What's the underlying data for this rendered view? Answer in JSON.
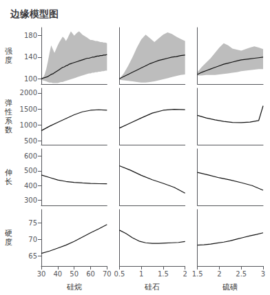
{
  "title": "边缘模型图",
  "chart_data": [
    {
      "type": "line",
      "tick_labels": "y",
      "grid": false,
      "color": "#111111",
      "ylabel": "强\n度",
      "xlim": [
        30,
        70
      ],
      "xticks": [
        30,
        40,
        50,
        60,
        70
      ],
      "ylim": [
        90,
        195
      ],
      "yticks": [
        100,
        140,
        180
      ],
      "x": [
        30,
        31,
        32,
        33,
        34,
        35,
        36,
        37,
        38,
        39,
        40,
        41,
        42,
        43,
        44,
        45,
        46,
        47,
        48,
        49,
        50,
        51,
        52,
        53,
        54,
        55,
        56,
        57,
        58,
        59,
        60,
        61,
        62,
        63,
        64,
        65,
        66,
        67,
        68,
        69,
        70
      ],
      "values": [
        100,
        101,
        102,
        103,
        104,
        106,
        108,
        109,
        111,
        113,
        115,
        117,
        119,
        121,
        122,
        124,
        125,
        127,
        128,
        129,
        130,
        131,
        132,
        133,
        134,
        135,
        136,
        137,
        138,
        138,
        139,
        140,
        140,
        141,
        142,
        142,
        143,
        143,
        144,
        144,
        145
      ],
      "upper": [
        100,
        102,
        108,
        118,
        132,
        148,
        162,
        155,
        148,
        155,
        162,
        168,
        173,
        178,
        175,
        170,
        175,
        182,
        188,
        184,
        180,
        183,
        186,
        188,
        185,
        182,
        180,
        178,
        176,
        174,
        172,
        172,
        171,
        170,
        170,
        169,
        168,
        168,
        167,
        167,
        166
      ],
      "lower": [
        98,
        97,
        96,
        95,
        94,
        93,
        93,
        92,
        92,
        92,
        92,
        93,
        94,
        94,
        95,
        96,
        97,
        98,
        99,
        100,
        101,
        102,
        103,
        104,
        105,
        106,
        107,
        108,
        109,
        110,
        110,
        111,
        111,
        112,
        112,
        113,
        113,
        114,
        114,
        115,
        115
      ]
    },
    {
      "type": "line",
      "tick_labels": false,
      "grid": false,
      "color": "#111111",
      "xlim": [
        0.5,
        2.0
      ],
      "xticks": [
        0.5,
        1,
        1.5,
        2
      ],
      "ylim": [
        90,
        195
      ],
      "yticks": [
        100,
        140,
        180
      ],
      "x": [
        0.5,
        0.6,
        0.7,
        0.8,
        0.9,
        1.0,
        1.1,
        1.2,
        1.3,
        1.4,
        1.5,
        1.6,
        1.7,
        1.8,
        1.9,
        2.0
      ],
      "values": [
        100,
        104,
        108,
        112,
        116,
        120,
        124,
        128,
        131,
        134,
        136,
        138,
        140,
        141,
        143,
        144
      ],
      "upper": [
        100,
        110,
        124,
        140,
        158,
        173,
        182,
        175,
        168,
        175,
        182,
        186,
        183,
        178,
        174,
        170
      ],
      "lower": [
        98,
        97,
        96,
        95,
        94,
        93,
        93,
        94,
        95,
        97,
        99,
        101,
        103,
        105,
        107,
        108
      ]
    },
    {
      "type": "line",
      "tick_labels": false,
      "grid": false,
      "color": "#111111",
      "xlim": [
        1.5,
        3.0
      ],
      "xticks": [
        1.5,
        2,
        2.5,
        3
      ],
      "ylim": [
        90,
        195
      ],
      "yticks": [
        100,
        140,
        180
      ],
      "x": [
        1.5,
        1.6,
        1.7,
        1.8,
        1.9,
        2.0,
        2.1,
        2.2,
        2.3,
        2.4,
        2.5,
        2.6,
        2.7,
        2.8,
        2.9,
        3.0
      ],
      "values": [
        108,
        112,
        115,
        118,
        121,
        124,
        127,
        129,
        131,
        133,
        135,
        136,
        137,
        138,
        139,
        140
      ],
      "upper": [
        112,
        122,
        130,
        138,
        148,
        158,
        166,
        162,
        156,
        154,
        152,
        155,
        158,
        160,
        158,
        155
      ],
      "lower": [
        106,
        106,
        107,
        107,
        107,
        108,
        109,
        110,
        111,
        112,
        114,
        115,
        116,
        117,
        118,
        118
      ]
    },
    {
      "type": "line",
      "tick_labels": "y",
      "grid": false,
      "color": "#111111",
      "ylabel": "弹\n性\n系\n数",
      "xlim": [
        30,
        70
      ],
      "xticks": [
        30,
        40,
        50,
        60,
        70
      ],
      "ylim": [
        380,
        2150
      ],
      "yticks": [
        500,
        1000,
        1500,
        2000
      ],
      "x": [
        30,
        35,
        40,
        45,
        50,
        55,
        60,
        65,
        70
      ],
      "values": [
        820,
        960,
        1080,
        1200,
        1320,
        1410,
        1460,
        1475,
        1460
      ]
    },
    {
      "type": "line",
      "tick_labels": false,
      "grid": false,
      "color": "#111111",
      "xlim": [
        0.5,
        2.0
      ],
      "xticks": [
        0.5,
        1,
        1.5,
        2
      ],
      "ylim": [
        380,
        2150
      ],
      "yticks": [
        500,
        1000,
        1500,
        2000
      ],
      "x": [
        0.5,
        0.75,
        1.0,
        1.25,
        1.5,
        1.75,
        2.0
      ],
      "values": [
        900,
        1060,
        1220,
        1370,
        1460,
        1490,
        1480
      ]
    },
    {
      "type": "line",
      "tick_labels": false,
      "grid": false,
      "color": "#111111",
      "xlim": [
        1.5,
        3.0
      ],
      "xticks": [
        1.5,
        2,
        2.5,
        3
      ],
      "ylim": [
        380,
        2150
      ],
      "yticks": [
        500,
        1000,
        1500,
        2000
      ],
      "x": [
        1.5,
        1.7,
        1.9,
        2.1,
        2.3,
        2.5,
        2.7,
        2.9,
        3.0
      ],
      "values": [
        1300,
        1220,
        1160,
        1110,
        1080,
        1075,
        1090,
        1140,
        1600
      ]
    },
    {
      "type": "line",
      "tick_labels": "y",
      "grid": false,
      "color": "#111111",
      "ylabel": "伸\n长",
      "xlim": [
        30,
        70
      ],
      "xticks": [
        30,
        40,
        50,
        60,
        70
      ],
      "ylim": [
        265,
        650
      ],
      "yticks": [
        300,
        400,
        500,
        600
      ],
      "x": [
        30,
        35,
        40,
        45,
        50,
        55,
        60,
        65,
        70
      ],
      "values": [
        472,
        455,
        438,
        428,
        422,
        418,
        415,
        413,
        412
      ]
    },
    {
      "type": "line",
      "tick_labels": false,
      "grid": false,
      "color": "#111111",
      "xlim": [
        0.5,
        2.0
      ],
      "xticks": [
        0.5,
        1,
        1.5,
        2
      ],
      "ylim": [
        265,
        650
      ],
      "yticks": [
        300,
        400,
        500,
        600
      ],
      "x": [
        0.5,
        0.75,
        1.0,
        1.25,
        1.5,
        1.75,
        2.0
      ],
      "values": [
        535,
        505,
        470,
        440,
        415,
        388,
        348
      ]
    },
    {
      "type": "line",
      "tick_labels": false,
      "grid": false,
      "color": "#111111",
      "xlim": [
        1.5,
        3.0
      ],
      "xticks": [
        1.5,
        2,
        2.5,
        3
      ],
      "ylim": [
        265,
        650
      ],
      "yticks": [
        300,
        400,
        500,
        600
      ],
      "x": [
        1.5,
        1.75,
        2.0,
        2.25,
        2.5,
        2.75,
        3.0
      ],
      "values": [
        490,
        472,
        453,
        438,
        420,
        400,
        368
      ]
    },
    {
      "type": "line",
      "tick_labels": true,
      "grid": false,
      "color": "#111111",
      "ylabel": "硬\n度",
      "xlabel": "硅烷",
      "xlim": [
        30,
        70
      ],
      "xticks": [
        30,
        40,
        50,
        60,
        70
      ],
      "ylim": [
        62,
        79
      ],
      "yticks": [
        65,
        70,
        75
      ],
      "x": [
        30,
        35,
        40,
        45,
        50,
        55,
        60,
        65,
        70
      ],
      "values": [
        65.8,
        66.5,
        67.4,
        68.3,
        69.4,
        70.7,
        72.0,
        73.2,
        74.5
      ]
    },
    {
      "type": "line",
      "tick_labels": "x",
      "grid": false,
      "color": "#111111",
      "xlabel": "硅石",
      "xlim": [
        0.5,
        2.0
      ],
      "xticks": [
        0.5,
        1,
        1.5,
        2
      ],
      "ylim": [
        62,
        79
      ],
      "yticks": [
        65,
        70,
        75
      ],
      "x": [
        0.5,
        0.65,
        0.8,
        0.95,
        1.1,
        1.25,
        1.4,
        1.55,
        1.7,
        1.85,
        2.0
      ],
      "values": [
        72.8,
        71.8,
        70.5,
        69.5,
        69.0,
        68.8,
        68.8,
        68.9,
        69.0,
        69.1,
        69.4
      ]
    },
    {
      "type": "line",
      "tick_labels": "x",
      "grid": false,
      "color": "#111111",
      "xlabel": "硫磺",
      "xlim": [
        1.5,
        3.0
      ],
      "xticks": [
        1.5,
        2,
        2.5,
        3
      ],
      "ylim": [
        62,
        79
      ],
      "yticks": [
        65,
        70,
        75
      ],
      "x": [
        1.5,
        1.65,
        1.8,
        1.95,
        2.1,
        2.25,
        2.4,
        2.55,
        2.7,
        2.85,
        3.0
      ],
      "values": [
        68.3,
        68.4,
        68.6,
        68.9,
        69.2,
        69.6,
        70.1,
        70.6,
        71.1,
        71.5,
        72.0
      ]
    }
  ]
}
